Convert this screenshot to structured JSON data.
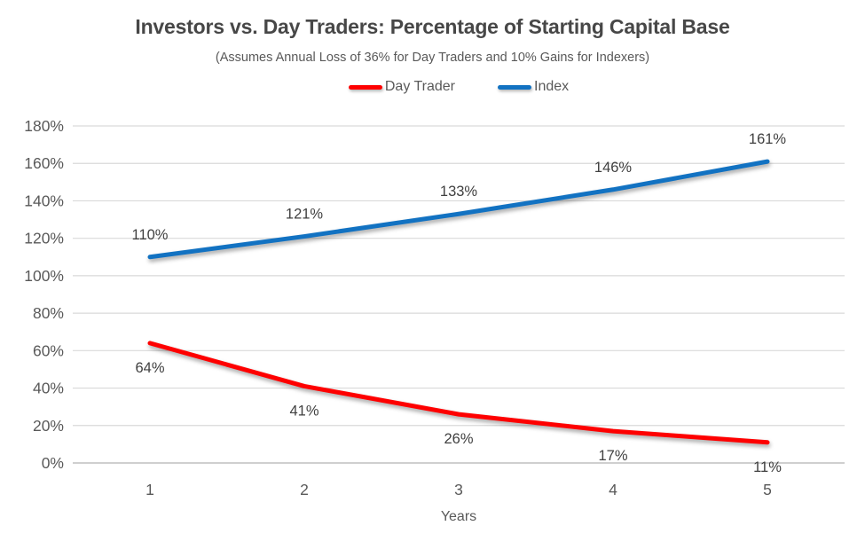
{
  "chart_data": {
    "type": "line",
    "title": "Investors vs. Day Traders: Percentage of Starting Capital Base",
    "subtitle": "(Assumes Annual Loss of 36% for Day Traders and 10% Gains for Indexers)",
    "xlabel": "Years",
    "ylabel": "",
    "categories": [
      "1",
      "2",
      "3",
      "4",
      "5"
    ],
    "series": [
      {
        "name": "Day Trader",
        "color": "#FE0000",
        "values": [
          64,
          41,
          26,
          17,
          11
        ],
        "value_labels": [
          "64%",
          "41%",
          "26%",
          "17%",
          "11%"
        ],
        "label_position": "below"
      },
      {
        "name": "Index",
        "color": "#1272C2",
        "values": [
          110,
          121,
          133,
          146,
          161
        ],
        "value_labels": [
          "110%",
          "121%",
          "133%",
          "146%",
          "161%"
        ],
        "label_position": "above"
      }
    ],
    "y_axis": {
      "min": 0,
      "max": 180,
      "step": 20,
      "tick_labels": [
        "0%",
        "20%",
        "40%",
        "60%",
        "80%",
        "100%",
        "120%",
        "140%",
        "160%",
        "180%"
      ]
    },
    "legend_position": "top-center",
    "grid": "horizontal",
    "colors": {
      "gridline": "#D9D9D9",
      "axis_line": "#BFBFBF",
      "tick_text": "#595959",
      "data_label_text": "#404040"
    }
  }
}
